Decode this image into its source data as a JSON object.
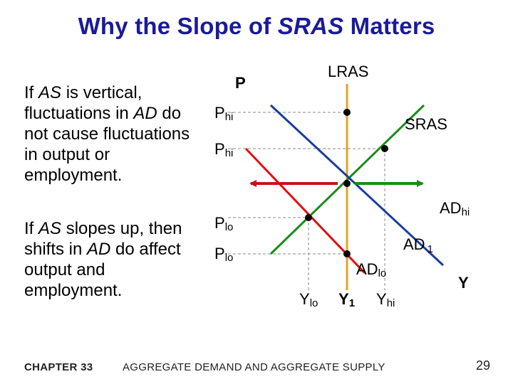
{
  "title": {
    "text_main": "Why the Slope of ",
    "text_italic": "SRAS",
    "text_end": " Matters"
  },
  "left_text": {
    "para1": {
      "p1": "If ",
      "i1": "AS",
      "p2": " is vertical, fluctuations in ",
      "i2": "AD",
      "p3": " do not cause fluctuations in output or employment."
    },
    "para2": {
      "p1": "If ",
      "i1": "AS",
      "p2": " slopes up, then shifts in ",
      "i2": "AD",
      "p3": " do affect output and employment."
    }
  },
  "diagram": {
    "axis_p": "P",
    "axis_y": "Y",
    "lras": "LRAS",
    "sras": "SRAS",
    "ad_hi": {
      "main": "AD",
      "sub": "hi"
    },
    "ad_1": {
      "main": "AD",
      "sub": "1"
    },
    "ad_lo": {
      "main": "AD",
      "sub": "lo"
    },
    "p_levels": [
      {
        "main": "P",
        "sub": "hi"
      },
      {
        "main": "P",
        "sub": "hi"
      },
      {
        "main": "P",
        "sub": "lo"
      },
      {
        "main": "P",
        "sub": "lo"
      }
    ],
    "y_levels": [
      {
        "main": "Y",
        "sub": "lo"
      },
      {
        "main": "Y",
        "sub": "1"
      },
      {
        "main": "Y",
        "sub": "hi"
      }
    ],
    "colors": {
      "lras": "#e8a020",
      "sras": "#1a8c1a",
      "ad_hi": "#1a3ca0",
      "ad_lo": "#e01010",
      "arrow_left": "#c8101a",
      "arrow_right": "#1a8c1a",
      "title": "#1a1a9c"
    }
  },
  "footer": {
    "chapter": "CHAPTER 33",
    "course": "AGGREGATE DEMAND AND AGGREGATE SUPPLY",
    "page": "29"
  }
}
